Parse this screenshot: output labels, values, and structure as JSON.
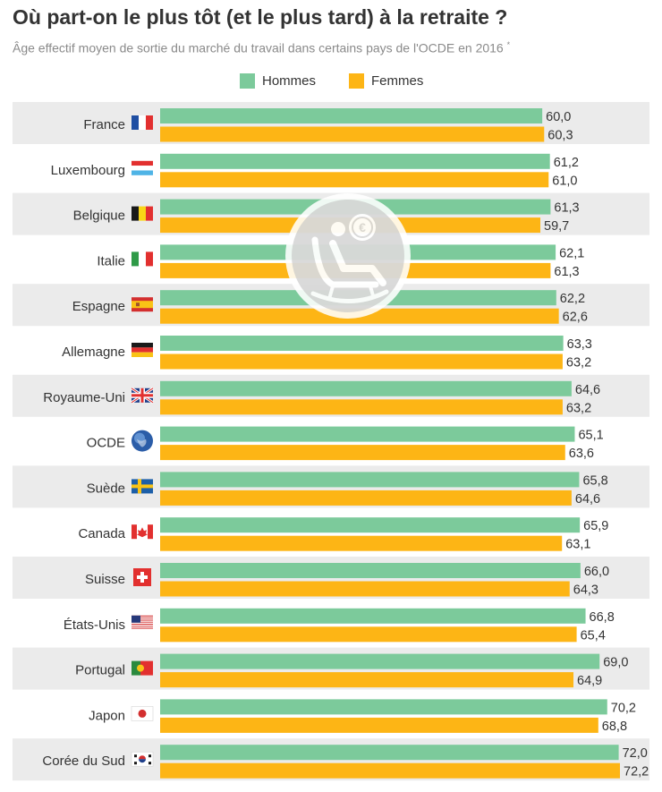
{
  "title": "Où part-on le plus tôt (et le plus tard) à la retraite ?",
  "subtitle": "Âge effectif moyen de sortie du marché du travail dans certains pays de l'OCDE en 2016",
  "subtitle_mark": "*",
  "colors": {
    "hommes": "#7cca9b",
    "femmes": "#fdb515",
    "row_band": "#ebebeb",
    "text": "#333333",
    "subtitle": "#8a8a8a"
  },
  "watermark_icon": "rocking-chair-retiree-euro-icon",
  "chart_data": {
    "type": "bar",
    "orientation": "horizontal",
    "title": "Où part-on le plus tôt (et le plus tard) à la retraite ?",
    "subtitle": "Âge effectif moyen de sortie du marché du travail dans certains pays de l'OCDE en 2016",
    "categories": [
      "France",
      "Luxembourg",
      "Belgique",
      "Italie",
      "Espagne",
      "Allemagne",
      "Royaume-Uni",
      "OCDE",
      "Suède",
      "Canada",
      "Suisse",
      "États-Unis",
      "Portugal",
      "Japon",
      "Corée du Sud"
    ],
    "flag_icons": [
      "france-flag-icon",
      "luxembourg-flag-icon",
      "belgium-flag-icon",
      "italy-flag-icon",
      "spain-flag-icon",
      "germany-flag-icon",
      "uk-flag-icon",
      "globe-icon",
      "sweden-flag-icon",
      "canada-flag-icon",
      "switzerland-flag-icon",
      "usa-flag-icon",
      "portugal-flag-icon",
      "japan-flag-icon",
      "south-korea-flag-icon"
    ],
    "series": [
      {
        "name": "Hommes",
        "values": [
          60.0,
          61.2,
          61.3,
          62.1,
          62.2,
          63.3,
          64.6,
          65.1,
          65.8,
          65.9,
          66.0,
          66.8,
          69.0,
          70.2,
          72.0
        ]
      },
      {
        "name": "Femmes",
        "values": [
          60.3,
          61.0,
          59.7,
          61.3,
          62.6,
          63.2,
          63.2,
          63.6,
          64.6,
          63.1,
          64.3,
          65.4,
          64.9,
          68.8,
          72.2
        ]
      }
    ],
    "value_labels": [
      [
        "60,0",
        "61,2",
        "61,3",
        "62,1",
        "62,2",
        "63,3",
        "64,6",
        "65,1",
        "65,8",
        "65,9",
        "66,0",
        "66,8",
        "69,0",
        "70,2",
        "72,0"
      ],
      [
        "60,3",
        "61,0",
        "59,7",
        "61,3",
        "62,6",
        "63,2",
        "63,2",
        "63,6",
        "64,6",
        "63,1",
        "64,3",
        "65,4",
        "64,9",
        "68,8",
        "72,2"
      ]
    ],
    "legend_position": "top-center",
    "grid": false
  }
}
